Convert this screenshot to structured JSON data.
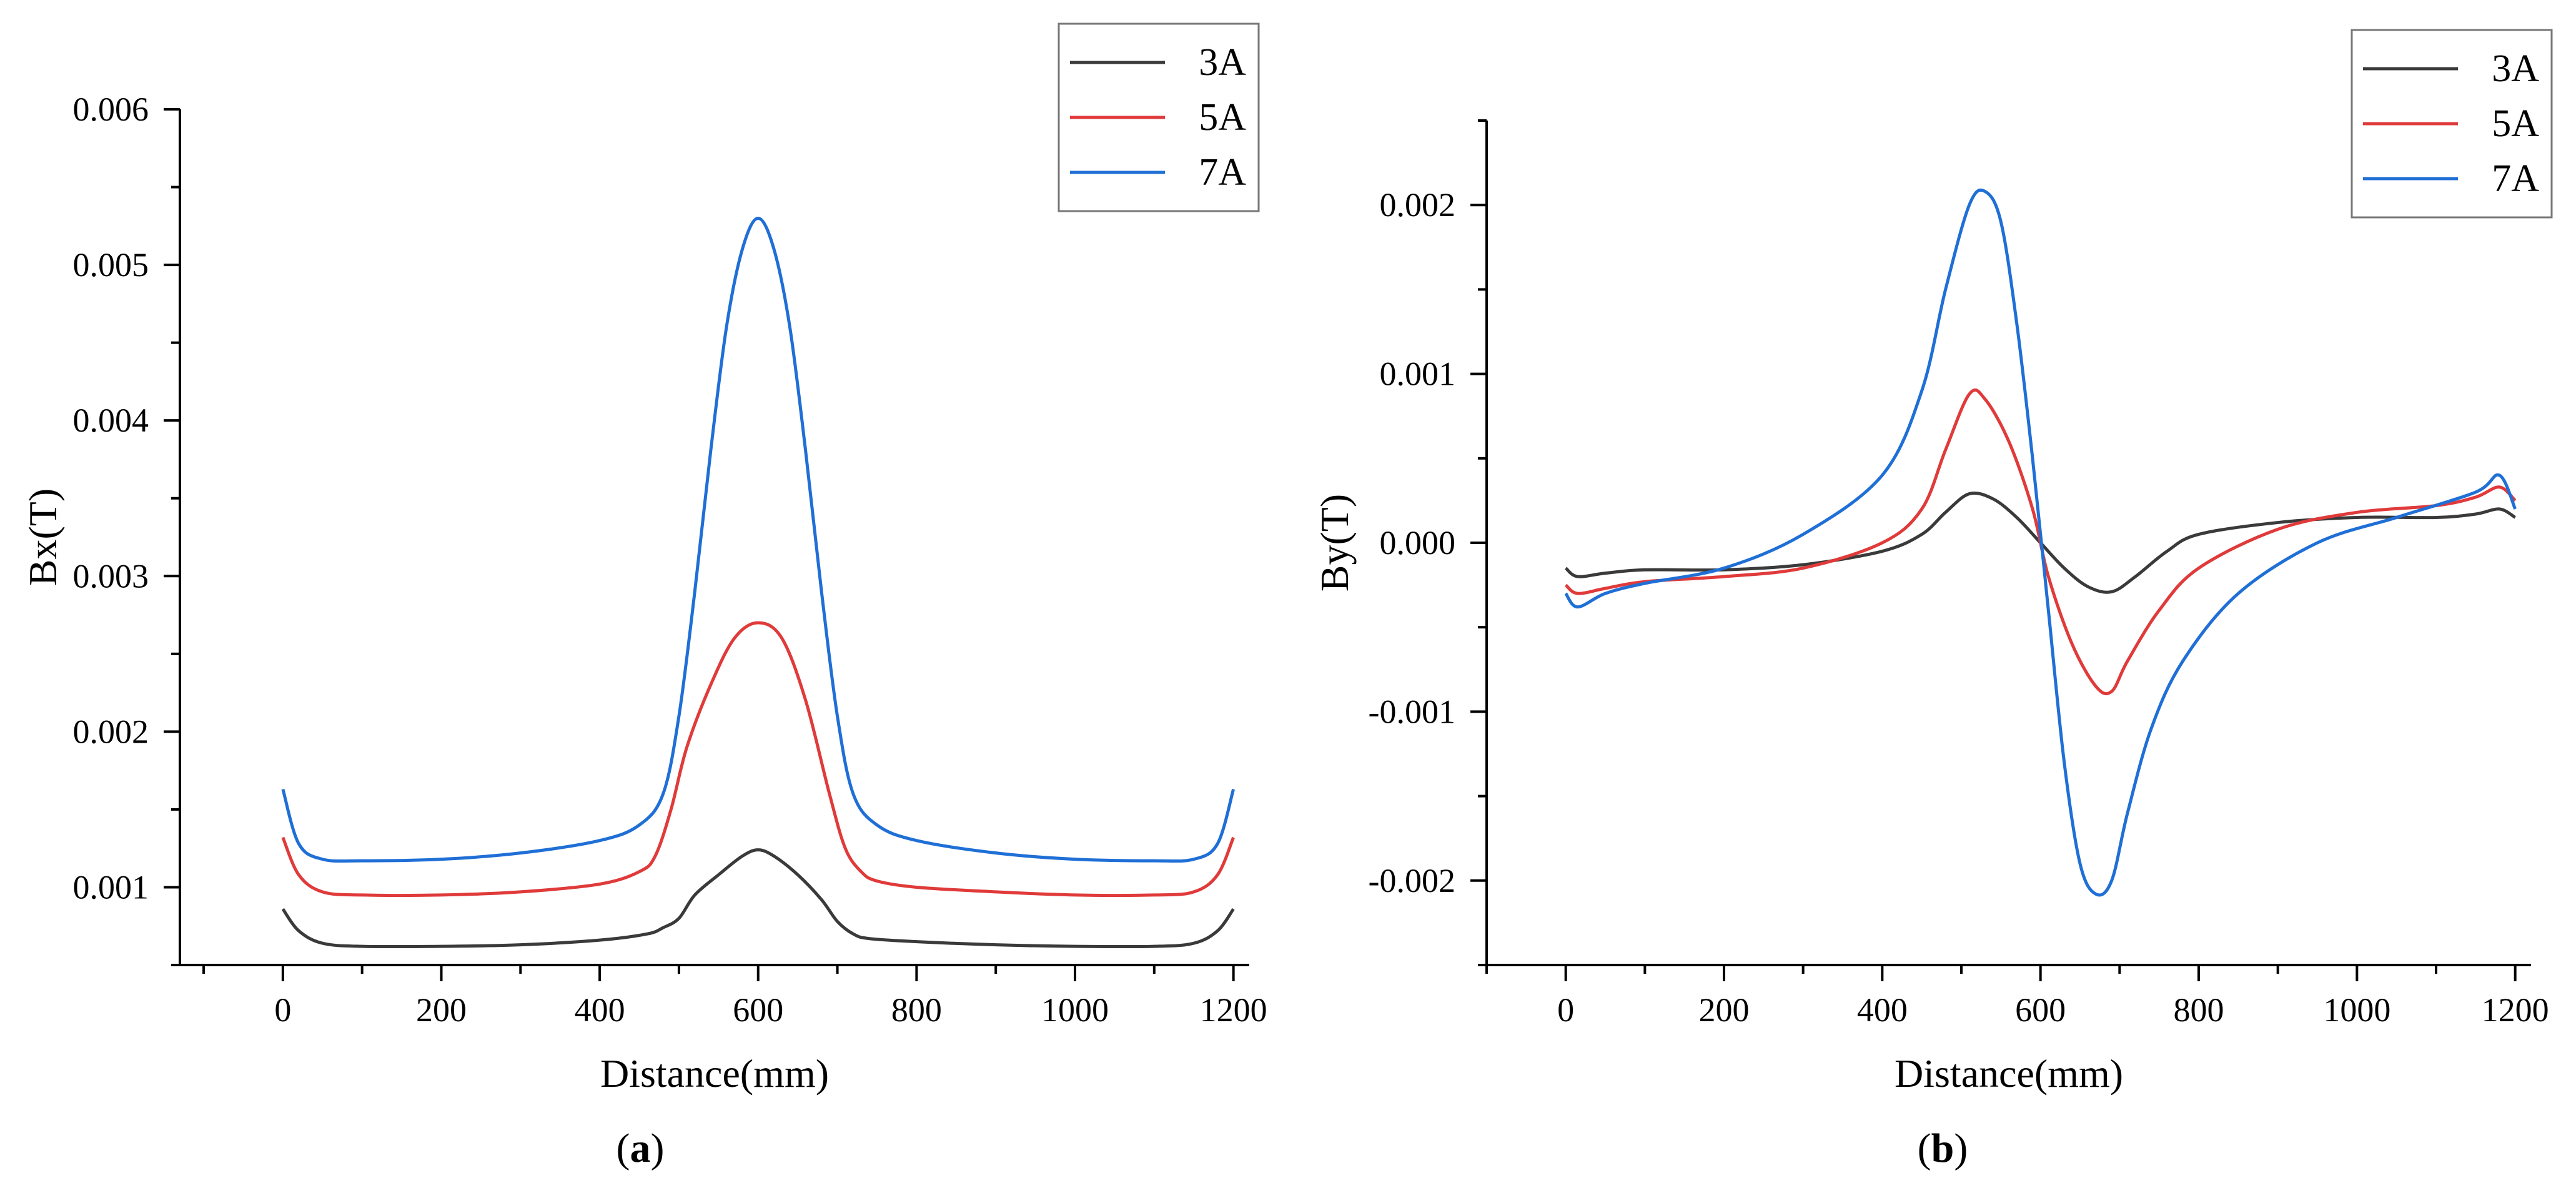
{
  "chart_data": [
    {
      "type": "line",
      "panel_label": "a",
      "xlabel": "Distance(mm)",
      "ylabel": "Bx(T)",
      "xlim": [
        -130,
        1220
      ],
      "ylim": [
        0.0005,
        0.006
      ],
      "xticks": [
        0,
        200,
        400,
        600,
        800,
        1000,
        1200
      ],
      "xtick_labels": [
        "0",
        "200",
        "400",
        "600",
        "800",
        "1000",
        "1200"
      ],
      "yticks": [
        0.001,
        0.002,
        0.003,
        0.004,
        0.005,
        0.006
      ],
      "ytick_labels": [
        "0.001",
        "0.002",
        "0.003",
        "0.004",
        "0.005",
        "0.006"
      ],
      "legend_position": "top-right",
      "series": [
        {
          "name": "3A",
          "color": "#3a3a3a",
          "x": [
            0,
            20,
            50,
            100,
            200,
            300,
            400,
            460,
            480,
            500,
            520,
            550,
            580,
            600,
            620,
            650,
            680,
            700,
            720,
            740,
            800,
            900,
            1000,
            1100,
            1150,
            1180,
            1200
          ],
          "y": [
            0.00086,
            0.00072,
            0.00064,
            0.00062,
            0.00062,
            0.00063,
            0.00066,
            0.0007,
            0.00074,
            0.0008,
            0.00095,
            0.00108,
            0.0012,
            0.00124,
            0.0012,
            0.00108,
            0.00092,
            0.00078,
            0.0007,
            0.00067,
            0.00065,
            0.00063,
            0.00062,
            0.00062,
            0.00064,
            0.00072,
            0.00086
          ]
        },
        {
          "name": "5A",
          "color": "#e03a3a",
          "x": [
            0,
            20,
            50,
            100,
            200,
            300,
            400,
            450,
            470,
            490,
            510,
            540,
            570,
            600,
            630,
            660,
            690,
            710,
            730,
            750,
            800,
            900,
            1000,
            1100,
            1150,
            1180,
            1200
          ],
          "y": [
            0.00132,
            0.00108,
            0.00097,
            0.00095,
            0.00095,
            0.00097,
            0.00102,
            0.0011,
            0.0012,
            0.0015,
            0.0019,
            0.0023,
            0.0026,
            0.0027,
            0.0026,
            0.0022,
            0.0016,
            0.00125,
            0.0011,
            0.00104,
            0.001,
            0.00097,
            0.00095,
            0.00095,
            0.00097,
            0.00108,
            0.00132
          ]
        },
        {
          "name": "7A",
          "color": "#1f6fd6",
          "x": [
            0,
            20,
            50,
            100,
            200,
            300,
            400,
            450,
            480,
            500,
            520,
            540,
            560,
            580,
            600,
            620,
            640,
            660,
            680,
            700,
            720,
            750,
            800,
            900,
            1000,
            1100,
            1150,
            1180,
            1200
          ],
          "y": [
            0.00163,
            0.00128,
            0.00118,
            0.00117,
            0.00118,
            0.00122,
            0.0013,
            0.0014,
            0.0016,
            0.0021,
            0.0029,
            0.0038,
            0.0046,
            0.0051,
            0.0053,
            0.0051,
            0.0046,
            0.0038,
            0.0029,
            0.0021,
            0.0016,
            0.0014,
            0.0013,
            0.00122,
            0.00118,
            0.00117,
            0.00118,
            0.00128,
            0.00163
          ]
        }
      ]
    },
    {
      "type": "line",
      "panel_label": "b",
      "xlabel": "Distance(mm)",
      "ylabel": "By(T)",
      "xlim": [
        -100,
        1220
      ],
      "ylim": [
        -0.0025,
        0.0025
      ],
      "xticks": [
        0,
        200,
        400,
        600,
        800,
        1000,
        1200
      ],
      "xtick_labels": [
        "0",
        "200",
        "400",
        "600",
        "800",
        "1000",
        "1200"
      ],
      "yticks": [
        -0.002,
        -0.001,
        0.0,
        0.001,
        0.002
      ],
      "ytick_labels": [
        "-0.002",
        "-0.001",
        "0.000",
        "0.001",
        "0.002"
      ],
      "legend_position": "top-right",
      "series": [
        {
          "name": "3A",
          "color": "#3a3a3a",
          "x": [
            0,
            15,
            50,
            100,
            200,
            300,
            400,
            450,
            480,
            510,
            540,
            570,
            600,
            630,
            660,
            690,
            720,
            760,
            800,
            900,
            1000,
            1100,
            1150,
            1180,
            1200
          ],
          "y": [
            -0.00015,
            -0.0002,
            -0.00018,
            -0.00016,
            -0.00016,
            -0.00013,
            -5e-05,
            5e-05,
            0.00018,
            0.00029,
            0.00026,
            0.00015,
            0.0,
            -0.00015,
            -0.00026,
            -0.00029,
            -0.0002,
            -5e-05,
            5e-05,
            0.00012,
            0.00015,
            0.00015,
            0.00017,
            0.0002,
            0.00015
          ]
        },
        {
          "name": "5A",
          "color": "#e03a3a",
          "x": [
            0,
            15,
            50,
            100,
            200,
            300,
            400,
            450,
            480,
            510,
            530,
            560,
            590,
            610,
            640,
            670,
            690,
            710,
            750,
            800,
            900,
            1000,
            1100,
            1150,
            1180,
            1200
          ],
          "y": [
            -0.00025,
            -0.0003,
            -0.00027,
            -0.00023,
            -0.0002,
            -0.00015,
            0.0,
            0.0002,
            0.00055,
            0.00088,
            0.00085,
            0.0006,
            0.0002,
            -0.0002,
            -0.0006,
            -0.00085,
            -0.00088,
            -0.0007,
            -0.0004,
            -0.00015,
            8e-05,
            0.00018,
            0.00022,
            0.00027,
            0.00033,
            0.00025
          ]
        },
        {
          "name": "7A",
          "color": "#1f6fd6",
          "x": [
            0,
            15,
            50,
            100,
            200,
            300,
            400,
            450,
            480,
            510,
            530,
            550,
            570,
            590,
            610,
            630,
            650,
            670,
            690,
            710,
            740,
            780,
            850,
            950,
            1050,
            1150,
            1180,
            1200
          ],
          "y": [
            -0.0003,
            -0.00038,
            -0.0003,
            -0.00024,
            -0.00015,
            5e-05,
            0.0004,
            0.0009,
            0.0015,
            0.002,
            0.00208,
            0.0019,
            0.0013,
            0.0005,
            -0.0004,
            -0.0013,
            -0.0019,
            -0.00208,
            -0.002,
            -0.0016,
            -0.0011,
            -0.0007,
            -0.0003,
            0.0,
            0.00015,
            0.0003,
            0.0004,
            0.0002
          ]
        }
      ]
    }
  ]
}
